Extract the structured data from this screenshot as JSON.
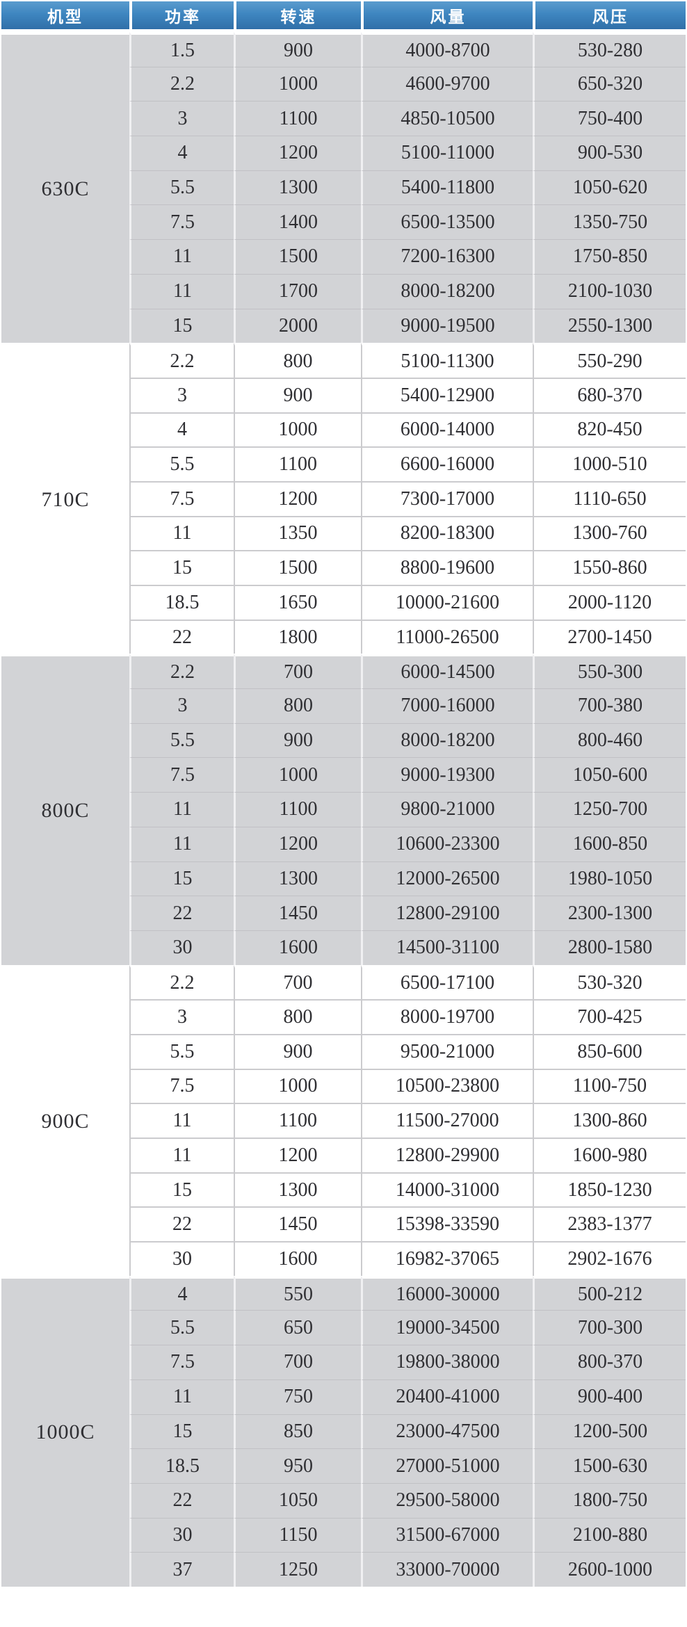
{
  "colors": {
    "header_bg": "#3e86c0",
    "header_text": "#ffffff",
    "section_grey": "#d2d3d6",
    "section_white": "#ffffff",
    "cell_text": "#2f2f33"
  },
  "table": {
    "columns": [
      "机型",
      "功率",
      "转速",
      "风量",
      "风压"
    ],
    "sections": [
      {
        "model": "630C",
        "rows": [
          [
            "1.5",
            "900",
            "4000-8700",
            "530-280"
          ],
          [
            "2.2",
            "1000",
            "4600-9700",
            "650-320"
          ],
          [
            "3",
            "1100",
            "4850-10500",
            "750-400"
          ],
          [
            "4",
            "1200",
            "5100-11000",
            "900-530"
          ],
          [
            "5.5",
            "1300",
            "5400-11800",
            "1050-620"
          ],
          [
            "7.5",
            "1400",
            "6500-13500",
            "1350-750"
          ],
          [
            "11",
            "1500",
            "7200-16300",
            "1750-850"
          ],
          [
            "11",
            "1700",
            "8000-18200",
            "2100-1030"
          ],
          [
            "15",
            "2000",
            "9000-19500",
            "2550-1300"
          ]
        ]
      },
      {
        "model": "710C",
        "rows": [
          [
            "2.2",
            "800",
            "5100-11300",
            "550-290"
          ],
          [
            "3",
            "900",
            "5400-12900",
            "680-370"
          ],
          [
            "4",
            "1000",
            "6000-14000",
            "820-450"
          ],
          [
            "5.5",
            "1100",
            "6600-16000",
            "1000-510"
          ],
          [
            "7.5",
            "1200",
            "7300-17000",
            "1110-650"
          ],
          [
            "11",
            "1350",
            "8200-18300",
            "1300-760"
          ],
          [
            "15",
            "1500",
            "8800-19600",
            "1550-860"
          ],
          [
            "18.5",
            "1650",
            "10000-21600",
            "2000-1120"
          ],
          [
            "22",
            "1800",
            "11000-26500",
            "2700-1450"
          ]
        ]
      },
      {
        "model": "800C",
        "rows": [
          [
            "2.2",
            "700",
            "6000-14500",
            "550-300"
          ],
          [
            "3",
            "800",
            "7000-16000",
            "700-380"
          ],
          [
            "5.5",
            "900",
            "8000-18200",
            "800-460"
          ],
          [
            "7.5",
            "1000",
            "9000-19300",
            "1050-600"
          ],
          [
            "11",
            "1100",
            "9800-21000",
            "1250-700"
          ],
          [
            "11",
            "1200",
            "10600-23300",
            "1600-850"
          ],
          [
            "15",
            "1300",
            "12000-26500",
            "1980-1050"
          ],
          [
            "22",
            "1450",
            "12800-29100",
            "2300-1300"
          ],
          [
            "30",
            "1600",
            "14500-31100",
            "2800-1580"
          ]
        ]
      },
      {
        "model": "900C",
        "rows": [
          [
            "2.2",
            "700",
            "6500-17100",
            "530-320"
          ],
          [
            "3",
            "800",
            "8000-19700",
            "700-425"
          ],
          [
            "5.5",
            "900",
            "9500-21000",
            "850-600"
          ],
          [
            "7.5",
            "1000",
            "10500-23800",
            "1100-750"
          ],
          [
            "11",
            "1100",
            "11500-27000",
            "1300-860"
          ],
          [
            "11",
            "1200",
            "12800-29900",
            "1600-980"
          ],
          [
            "15",
            "1300",
            "14000-31000",
            "1850-1230"
          ],
          [
            "22",
            "1450",
            "15398-33590",
            "2383-1377"
          ],
          [
            "30",
            "1600",
            "16982-37065",
            "2902-1676"
          ]
        ]
      },
      {
        "model": "1000C",
        "rows": [
          [
            "4",
            "550",
            "16000-30000",
            "500-212"
          ],
          [
            "5.5",
            "650",
            "19000-34500",
            "700-300"
          ],
          [
            "7.5",
            "700",
            "19800-38000",
            "800-370"
          ],
          [
            "11",
            "750",
            "20400-41000",
            "900-400"
          ],
          [
            "15",
            "850",
            "23000-47500",
            "1200-500"
          ],
          [
            "18.5",
            "950",
            "27000-51000",
            "1500-630"
          ],
          [
            "22",
            "1050",
            "29500-58000",
            "1800-750"
          ],
          [
            "30",
            "1150",
            "31500-67000",
            "2100-880"
          ],
          [
            "37",
            "1250",
            "33000-70000",
            "2600-1000"
          ]
        ]
      }
    ]
  }
}
